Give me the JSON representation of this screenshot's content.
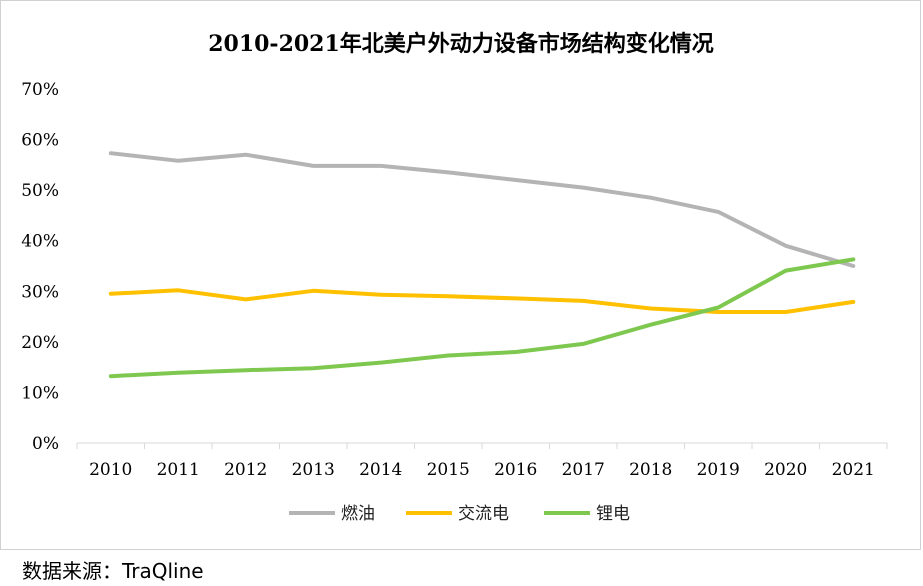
{
  "chart_data": {
    "type": "line",
    "title": "2010-2021年北美户外动力设备市场结构变化情况",
    "xlabel": "",
    "ylabel": "",
    "categories": [
      "2010",
      "2011",
      "2012",
      "2013",
      "2014",
      "2015",
      "2016",
      "2017",
      "2018",
      "2019",
      "2020",
      "2021"
    ],
    "y_ticks": [
      "0%",
      "10%",
      "20%",
      "30%",
      "40%",
      "50%",
      "60%",
      "70%"
    ],
    "ylim": [
      0,
      70
    ],
    "grid": false,
    "legend_position": "bottom",
    "series": [
      {
        "name": "燃油",
        "color": "#b4b4b4",
        "values": [
          57.3,
          55.8,
          57.0,
          54.8,
          54.8,
          53.5,
          52.0,
          50.5,
          48.5,
          45.7,
          39.0,
          35.0
        ]
      },
      {
        "name": "交流电",
        "color": "#ffc000",
        "values": [
          29.5,
          30.2,
          28.4,
          30.1,
          29.3,
          29.0,
          28.6,
          28.1,
          26.6,
          25.9,
          25.9,
          27.9
        ]
      },
      {
        "name": "锂电",
        "color": "#7ec84f",
        "values": [
          13.2,
          13.9,
          14.4,
          14.8,
          15.9,
          17.3,
          18.0,
          19.6,
          23.4,
          26.8,
          34.1,
          36.3
        ]
      }
    ]
  },
  "source_text": "数据来源：TraQline"
}
